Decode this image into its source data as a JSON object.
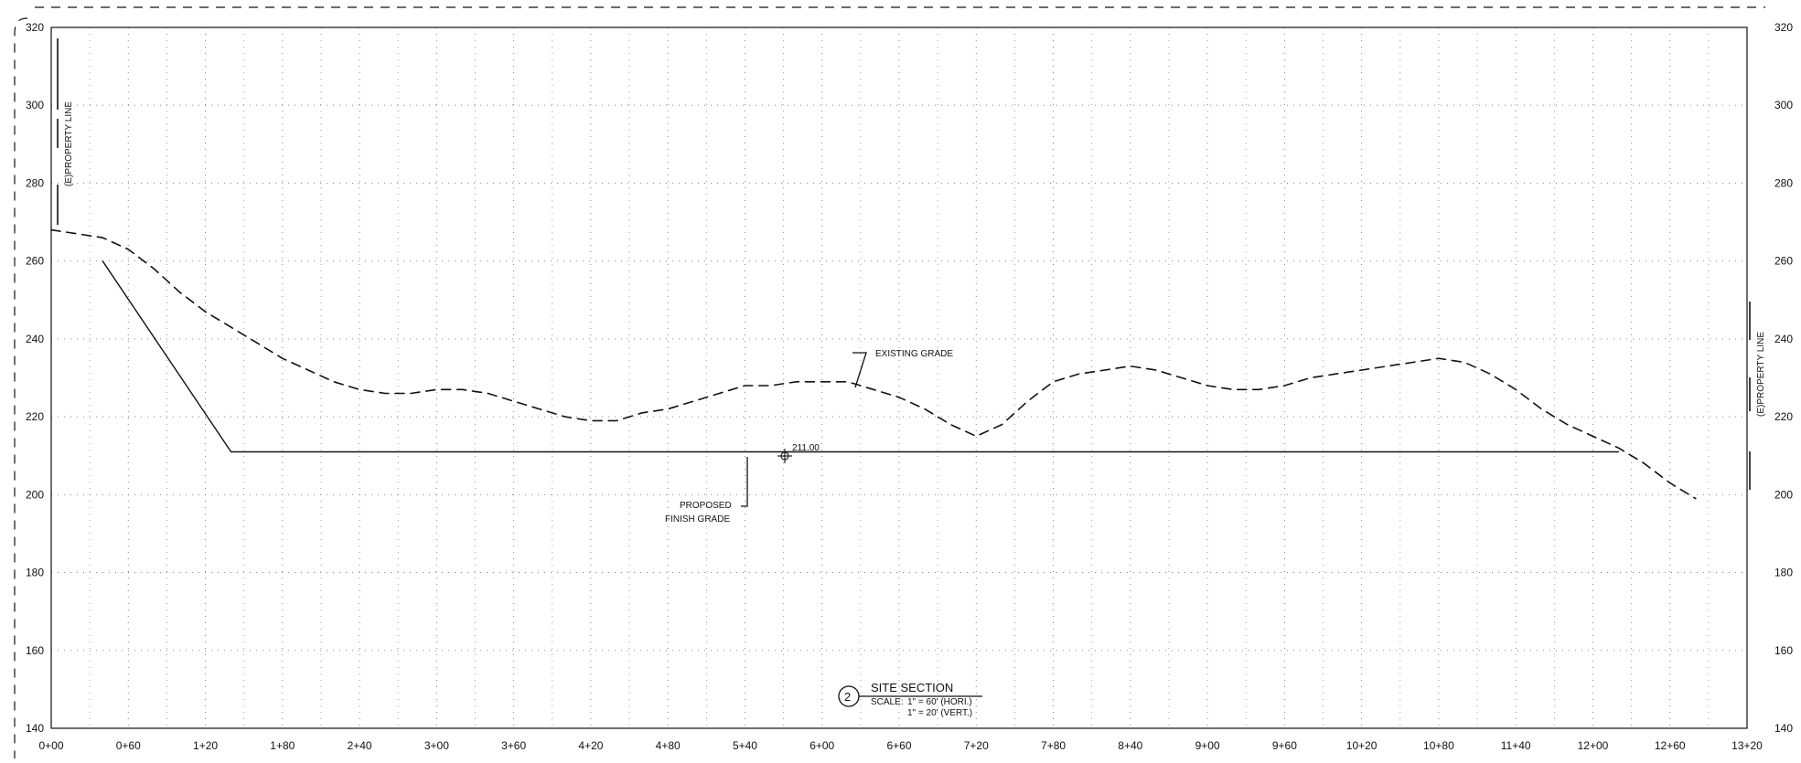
{
  "chart_data": {
    "type": "line",
    "title": "SITE SECTION",
    "title_number": "2",
    "scale": {
      "label": "SCALE:",
      "horizontal": "1\" = 60' (HORI.)",
      "vertical": "1\" = 20' (VERT.)"
    },
    "xlabel": "",
    "ylabel": "",
    "xlim": [
      0,
      1320
    ],
    "ylim": [
      140,
      320
    ],
    "x_ticks": [
      0,
      60,
      120,
      180,
      240,
      300,
      360,
      420,
      480,
      540,
      600,
      660,
      720,
      780,
      840,
      900,
      960,
      1020,
      1080,
      1140,
      1200,
      1260,
      1320
    ],
    "x_tick_labels": [
      "0+00",
      "0+60",
      "1+20",
      "1+80",
      "2+40",
      "3+00",
      "3+60",
      "4+20",
      "4+80",
      "5+40",
      "6+00",
      "6+60",
      "7+20",
      "7+80",
      "8+40",
      "9+00",
      "9+60",
      "10+20",
      "10+80",
      "11+40",
      "12+00",
      "12+60",
      "13+20"
    ],
    "y_ticks": [
      140,
      160,
      180,
      200,
      220,
      240,
      260,
      280,
      300,
      320
    ],
    "y_tick_labels": [
      "140",
      "160",
      "180",
      "200",
      "220",
      "240",
      "260",
      "280",
      "300",
      "320"
    ],
    "grid": true,
    "series": [
      {
        "name": "EXISTING GRADE",
        "style": "dashed",
        "color": "#111111",
        "x": [
          0,
          20,
          40,
          60,
          80,
          100,
          120,
          140,
          160,
          180,
          200,
          220,
          240,
          260,
          280,
          300,
          320,
          340,
          360,
          380,
          400,
          420,
          440,
          460,
          480,
          500,
          520,
          540,
          560,
          580,
          600,
          620,
          640,
          660,
          680,
          700,
          720,
          740,
          760,
          780,
          800,
          820,
          840,
          860,
          880,
          900,
          920,
          940,
          960,
          980,
          1000,
          1020,
          1040,
          1060,
          1080,
          1100,
          1120,
          1140,
          1160,
          1180,
          1200,
          1220,
          1240,
          1260,
          1280
        ],
        "values": [
          268,
          267,
          266,
          263,
          258,
          252,
          247,
          243,
          239,
          235,
          232,
          229,
          227,
          226,
          226,
          227,
          227,
          226,
          224,
          222,
          220,
          219,
          219,
          221,
          222,
          224,
          226,
          228,
          228,
          229,
          229,
          229,
          227,
          225,
          222,
          218,
          215,
          218,
          224,
          229,
          231,
          232,
          233,
          232,
          230,
          228,
          227,
          227,
          228,
          230,
          231,
          232,
          233,
          234,
          235,
          234,
          231,
          227,
          222,
          218,
          215,
          212,
          208,
          203,
          199
        ]
      },
      {
        "name": "PROPOSED FINISH GRADE",
        "style": "solid",
        "color": "#111111",
        "x": [
          40,
          140,
          1220
        ],
        "values": [
          260,
          211,
          211
        ]
      }
    ],
    "annotations": [
      {
        "text": "EXISTING GRADE",
        "x": 640,
        "y": 236
      },
      {
        "text": "PROPOSED",
        "x": 535,
        "y": 202
      },
      {
        "text": "FINISH GRADE",
        "x": 535,
        "y": 198
      },
      {
        "text": "211.00",
        "x": 568,
        "y": 212
      },
      {
        "text": "(E)PROPERTY LINE",
        "x": 10,
        "y": 290
      },
      {
        "text": "(E)PROPERTY LINE",
        "x": 1305,
        "y": 228
      }
    ]
  }
}
